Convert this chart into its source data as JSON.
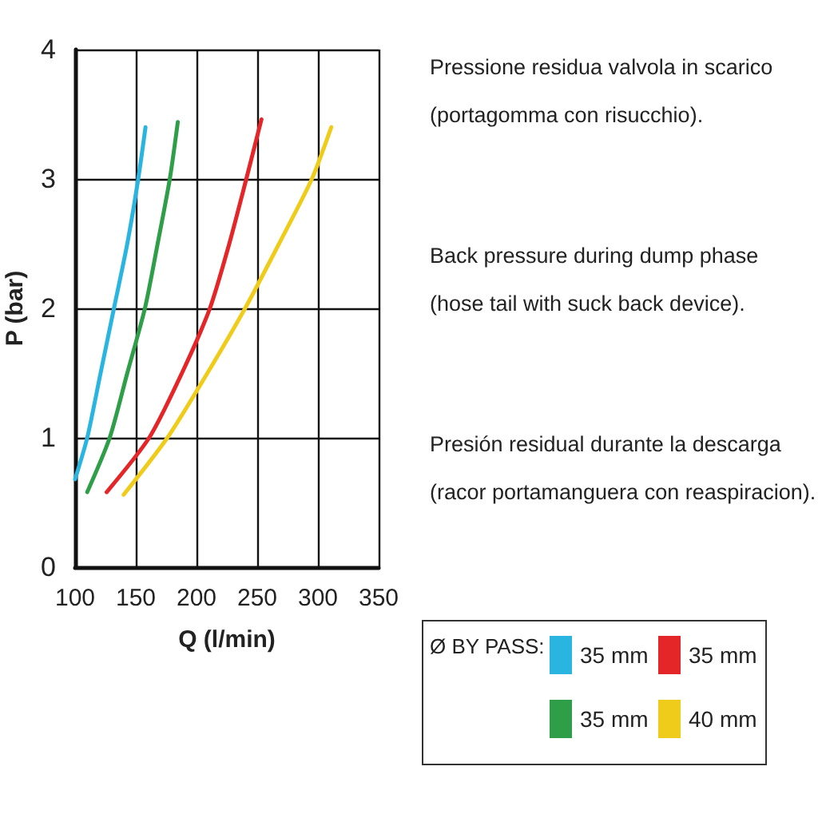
{
  "chart_data": {
    "type": "line",
    "xlabel": "Q (l/min)",
    "ylabel": "P (bar)",
    "legend_title": "Ø BY PASS:",
    "xlim": [
      100,
      350
    ],
    "xticks": [
      100,
      150,
      200,
      250,
      300,
      350
    ],
    "ylim": [
      0,
      4
    ],
    "yticks": [
      0,
      1,
      2,
      3,
      4
    ],
    "grid": true,
    "legend": "bottom right",
    "marker": "none",
    "line_style": "solid",
    "series": [
      {
        "name": "35 mm",
        "color": "#29b5e0",
        "x": [
          100,
          110,
          121,
          132,
          143,
          152,
          158
        ],
        "values": [
          0.68,
          1,
          1.5,
          2,
          2.5,
          3,
          3.4
        ]
      },
      {
        "name": "35 mm",
        "color": "#2e9e48",
        "x": [
          110,
          128.5,
          143,
          157.5,
          168,
          178,
          184.6
        ],
        "values": [
          0.58,
          1,
          1.5,
          2,
          2.5,
          3,
          3.44
        ]
      },
      {
        "name": "35 mm",
        "color": "#e52629",
        "x": [
          126,
          161,
          188,
          211,
          227,
          241,
          253.5
        ],
        "values": [
          0.58,
          1,
          1.5,
          2,
          2.5,
          3,
          3.46
        ]
      },
      {
        "name": "40 mm",
        "color": "#f0cc1a",
        "x": [
          140,
          176,
          209,
          240,
          268,
          295,
          311
        ],
        "values": [
          0.56,
          1,
          1.5,
          2,
          2.5,
          3,
          3.4
        ]
      }
    ],
    "annotations": [
      "Pressione residua valvola in scarico\n(portagomma con risucchio).",
      "Back pressure during dump phase\n(hose tail with suck back device).",
      "Presión residual durante la descarga\n(racor portamanguera con reaspiracion)."
    ]
  }
}
